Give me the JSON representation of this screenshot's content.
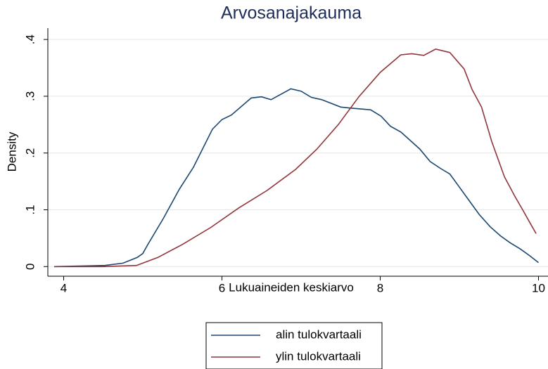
{
  "chart_data": {
    "type": "line",
    "title": "Arvosanajakauma",
    "xlabel": "Lukuaineiden keskiarvo",
    "ylabel": "Density",
    "xlim": [
      3.8,
      10.12
    ],
    "ylim": [
      -0.017,
      0.42
    ],
    "xticks": [
      4,
      6,
      8,
      10
    ],
    "yticks": [
      0,
      {
        "value": 0.1,
        "label": ".1"
      },
      {
        "value": 0.2,
        "label": ".2"
      },
      {
        "value": 0.3,
        "label": ".3"
      },
      {
        "value": 0.4,
        "label": ".4"
      }
    ],
    "grid": true,
    "legend": "bottom",
    "series": [
      {
        "name": "alin tulokvartaali",
        "color": "#1a476f",
        "x": [
          3.88,
          4.52,
          4.75,
          4.93,
          5.0,
          5.06,
          5.26,
          5.46,
          5.64,
          5.88,
          6.0,
          6.12,
          6.37,
          6.5,
          6.62,
          6.87,
          7.0,
          7.13,
          7.26,
          7.5,
          7.64,
          7.88,
          8.01,
          8.13,
          8.26,
          8.5,
          8.63,
          8.76,
          8.88,
          9.0,
          9.13,
          9.25,
          9.39,
          9.52,
          9.64,
          9.77,
          9.88,
          10.0
        ],
        "values": [
          0.0,
          0.002,
          0.006,
          0.016,
          0.023,
          0.038,
          0.085,
          0.136,
          0.175,
          0.242,
          0.259,
          0.267,
          0.297,
          0.299,
          0.294,
          0.313,
          0.309,
          0.298,
          0.294,
          0.281,
          0.279,
          0.276,
          0.265,
          0.247,
          0.237,
          0.207,
          0.185,
          0.173,
          0.163,
          0.14,
          0.115,
          0.092,
          0.07,
          0.054,
          0.042,
          0.031,
          0.02,
          0.007
        ]
      },
      {
        "name": "ylin tulokvartaali",
        "color": "#90353b",
        "x": [
          3.88,
          4.5,
          4.92,
          5.19,
          5.5,
          5.86,
          6.21,
          6.57,
          6.93,
          7.2,
          7.47,
          7.73,
          8.0,
          8.26,
          8.4,
          8.55,
          8.7,
          8.88,
          9.06,
          9.16,
          9.28,
          9.41,
          9.57,
          9.7,
          9.8,
          9.9,
          9.97
        ],
        "values": [
          0.0,
          0.0,
          0.002,
          0.016,
          0.039,
          0.069,
          0.103,
          0.134,
          0.171,
          0.207,
          0.25,
          0.299,
          0.342,
          0.373,
          0.375,
          0.372,
          0.383,
          0.377,
          0.348,
          0.312,
          0.281,
          0.22,
          0.158,
          0.124,
          0.1,
          0.075,
          0.058
        ]
      }
    ]
  }
}
